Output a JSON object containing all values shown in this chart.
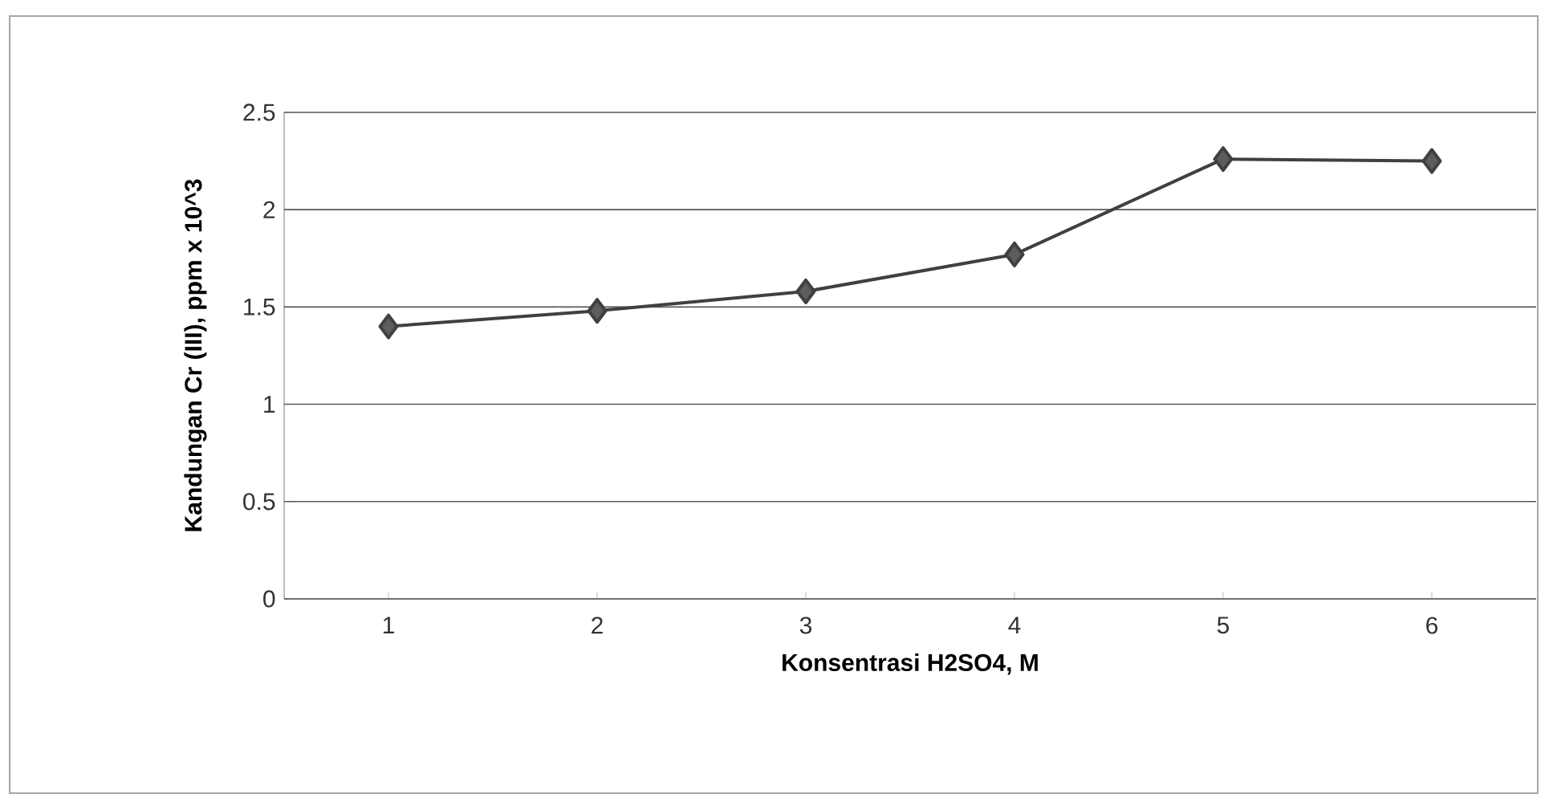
{
  "chart_data": {
    "type": "line",
    "xlabel": "Konsentrasi H2SO4, M",
    "ylabel": "Kandungan Cr (III), ppm x 10^3",
    "categories": [
      "1",
      "2",
      "3",
      "4",
      "5",
      "6"
    ],
    "series": [
      {
        "color": "#404040",
        "values": [
          1.4,
          1.48,
          1.58,
          1.77,
          2.26,
          2.25
        ]
      }
    ],
    "ylim": [
      0,
      2.5
    ],
    "yticks": [
      0,
      0.5,
      1,
      1.5,
      2,
      2.5
    ],
    "grid": "y",
    "marker": "diamond",
    "line_style": "solid"
  }
}
